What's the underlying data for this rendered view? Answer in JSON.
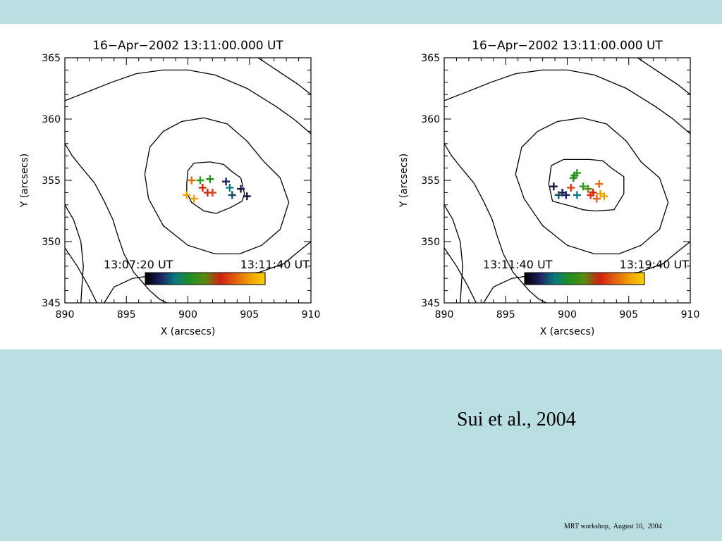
{
  "slide": {
    "citation": "Sui et al., 2004",
    "footer": "MRT workshop,  August 10,  2004",
    "background_color": "#b9dfe3"
  },
  "colorbar_colors": [
    "#000000",
    "#1e2060",
    "#0a7a80",
    "#1f8f20",
    "#5a8a10",
    "#d02010",
    "#e06010",
    "#f0a000",
    "#f8d000"
  ],
  "chart_data": [
    {
      "type": "scatter",
      "title": "16−Apr−2002 13:11:00.000 UT",
      "xlabel": "X (arcsecs)",
      "ylabel": "Y (arcsecs)",
      "xlim": [
        890,
        910
      ],
      "ylim": [
        345,
        365
      ],
      "xticks": [
        "890",
        "895",
        "900",
        "905",
        "910"
      ],
      "yticks": [
        "345",
        "350",
        "355",
        "360",
        "365"
      ],
      "colorbar": {
        "start": "13:07:20 UT",
        "end": "13:11:40 UT"
      },
      "marker": "plus",
      "points": [
        {
          "x": 904.8,
          "y": 353.7,
          "color": "#151540"
        },
        {
          "x": 904.3,
          "y": 354.3,
          "color": "#1a1a50"
        },
        {
          "x": 903.1,
          "y": 354.9,
          "color": "#1e2060"
        },
        {
          "x": 903.6,
          "y": 353.8,
          "color": "#16506a"
        },
        {
          "x": 903.4,
          "y": 354.4,
          "color": "#0a7a80"
        },
        {
          "x": 901.8,
          "y": 355.1,
          "color": "#1f8f20"
        },
        {
          "x": 901.0,
          "y": 355.0,
          "color": "#2a9a20"
        },
        {
          "x": 901.2,
          "y": 354.4,
          "color": "#d02010"
        },
        {
          "x": 901.6,
          "y": 354.0,
          "color": "#c82818"
        },
        {
          "x": 902.0,
          "y": 354.0,
          "color": "#d84010"
        },
        {
          "x": 900.3,
          "y": 355.0,
          "color": "#e07010"
        },
        {
          "x": 899.9,
          "y": 353.8,
          "color": "#f0a000"
        },
        {
          "x": 900.5,
          "y": 353.5,
          "color": "#f0a000"
        }
      ],
      "contours": [
        [
          [
            899.9,
            354.7
          ],
          [
            900.0,
            355.8
          ],
          [
            900.5,
            356.4
          ],
          [
            901.8,
            356.5
          ],
          [
            902.9,
            356.3
          ],
          [
            903.6,
            355.7
          ],
          [
            904.3,
            355.2
          ],
          [
            904.6,
            353.9
          ],
          [
            904.4,
            353.3
          ],
          [
            903.5,
            352.8
          ],
          [
            902.3,
            352.3
          ],
          [
            901.3,
            352.5
          ],
          [
            900.3,
            353.2
          ],
          [
            899.9,
            354.0
          ],
          [
            899.9,
            354.7
          ]
        ],
        [
          [
            896.5,
            355.5
          ],
          [
            896.9,
            357.7
          ],
          [
            898.0,
            359.0
          ],
          [
            899.5,
            359.8
          ],
          [
            901.3,
            360.1
          ],
          [
            903.2,
            359.6
          ],
          [
            904.8,
            358.2
          ],
          [
            906.2,
            356.5
          ],
          [
            907.5,
            355.2
          ],
          [
            908.2,
            353.2
          ],
          [
            907.5,
            351.0
          ],
          [
            906.0,
            349.7
          ],
          [
            904.2,
            349.0
          ],
          [
            902.2,
            349.0
          ],
          [
            900.0,
            349.7
          ],
          [
            898.0,
            351.3
          ],
          [
            896.8,
            353.5
          ],
          [
            896.5,
            355.5
          ]
        ],
        [
          [
            890.0,
            361.5
          ],
          [
            891.8,
            362.2
          ],
          [
            893.8,
            363.0
          ],
          [
            895.8,
            363.7
          ],
          [
            898.0,
            364.0
          ],
          [
            900.0,
            364.0
          ],
          [
            902.2,
            363.6
          ],
          [
            904.8,
            362.5
          ],
          [
            907.2,
            361.0
          ],
          [
            908.6,
            360.0
          ],
          [
            910.0,
            358.8
          ]
        ],
        [
          [
            893.2,
            345.0
          ],
          [
            894.0,
            346.3
          ],
          [
            895.5,
            347.0
          ],
          [
            897.5,
            347.3
          ],
          [
            899.7,
            347.3
          ],
          [
            901.8,
            347.3
          ],
          [
            903.8,
            347.3
          ],
          [
            905.8,
            347.5
          ],
          [
            907.8,
            348.2
          ],
          [
            909.0,
            349.2
          ],
          [
            910.0,
            350.0
          ]
        ],
        [
          [
            890.0,
            358.0
          ],
          [
            890.6,
            357.0
          ],
          [
            891.4,
            356.0
          ],
          [
            892.4,
            354.8
          ],
          [
            893.2,
            353.3
          ],
          [
            893.9,
            351.8
          ],
          [
            894.3,
            350.5
          ],
          [
            894.8,
            349.0
          ],
          [
            895.6,
            347.5
          ],
          [
            896.9,
            346.0
          ],
          [
            897.7,
            345.3
          ],
          [
            898.3,
            345.0
          ]
        ],
        [
          [
            890.0,
            353.0
          ],
          [
            890.7,
            351.8
          ],
          [
            891.3,
            350.0
          ],
          [
            891.5,
            348.0
          ],
          [
            891.4,
            346.5
          ],
          [
            891.3,
            345.0
          ]
        ],
        [
          [
            890.0,
            349.5
          ],
          [
            891.0,
            348.0
          ],
          [
            891.9,
            346.4
          ],
          [
            892.6,
            345.0
          ]
        ],
        [
          [
            905.7,
            365.0
          ],
          [
            907.5,
            363.8
          ],
          [
            909.0,
            362.8
          ],
          [
            910.0,
            362.0
          ]
        ]
      ]
    },
    {
      "type": "scatter",
      "title": "16−Apr−2002 13:11:00.000 UT",
      "xlabel": "X (arcsecs)",
      "ylabel": "Y (arcsecs)",
      "xlim": [
        890,
        910
      ],
      "ylim": [
        345,
        365
      ],
      "xticks": [
        "890",
        "895",
        "900",
        "905",
        "910"
      ],
      "yticks": [
        "345",
        "350",
        "355",
        "360",
        "365"
      ],
      "colorbar": {
        "start": "13:11:40 UT",
        "end": "13:19:40 UT"
      },
      "marker": "plus",
      "points": [
        {
          "x": 898.9,
          "y": 354.5,
          "color": "#151540"
        },
        {
          "x": 899.6,
          "y": 354.0,
          "color": "#1a1a50"
        },
        {
          "x": 899.9,
          "y": 353.8,
          "color": "#1e2060"
        },
        {
          "x": 899.3,
          "y": 353.8,
          "color": "#16506a"
        },
        {
          "x": 900.8,
          "y": 353.8,
          "color": "#0a7a80"
        },
        {
          "x": 900.6,
          "y": 355.4,
          "color": "#1f8f20"
        },
        {
          "x": 900.8,
          "y": 355.6,
          "color": "#2a9a20"
        },
        {
          "x": 900.5,
          "y": 355.2,
          "color": "#1f8f20"
        },
        {
          "x": 901.3,
          "y": 354.5,
          "color": "#2a9a20"
        },
        {
          "x": 901.7,
          "y": 354.3,
          "color": "#5a8a10"
        },
        {
          "x": 902.1,
          "y": 354.0,
          "color": "#d02010"
        },
        {
          "x": 900.3,
          "y": 354.4,
          "color": "#d84010"
        },
        {
          "x": 901.9,
          "y": 353.8,
          "color": "#e03018"
        },
        {
          "x": 902.4,
          "y": 353.5,
          "color": "#e06010"
        },
        {
          "x": 902.6,
          "y": 354.7,
          "color": "#e07010"
        },
        {
          "x": 902.7,
          "y": 353.9,
          "color": "#f0a000"
        },
        {
          "x": 903.0,
          "y": 353.7,
          "color": "#f0a000"
        }
      ],
      "contours": [
        [
          [
            898.5,
            354.7
          ],
          [
            898.7,
            356.2
          ],
          [
            899.7,
            356.7
          ],
          [
            901.8,
            356.7
          ],
          [
            902.9,
            356.6
          ],
          [
            903.6,
            356.0
          ],
          [
            904.6,
            355.3
          ],
          [
            904.6,
            353.9
          ],
          [
            903.8,
            352.6
          ],
          [
            902.3,
            352.5
          ],
          [
            901.3,
            352.6
          ],
          [
            900.3,
            352.9
          ],
          [
            898.8,
            353.3
          ],
          [
            898.5,
            354.7
          ]
        ],
        [
          [
            895.8,
            355.5
          ],
          [
            896.3,
            357.7
          ],
          [
            897.6,
            359.0
          ],
          [
            899.2,
            359.8
          ],
          [
            901.2,
            360.1
          ],
          [
            903.2,
            359.6
          ],
          [
            904.8,
            358.2
          ],
          [
            906.0,
            356.5
          ],
          [
            907.5,
            355.2
          ],
          [
            908.2,
            353.2
          ],
          [
            907.5,
            351.0
          ],
          [
            906.0,
            349.7
          ],
          [
            904.2,
            349.0
          ],
          [
            902.2,
            349.0
          ],
          [
            900.0,
            349.7
          ],
          [
            898.0,
            351.3
          ],
          [
            896.5,
            353.5
          ],
          [
            895.8,
            355.5
          ]
        ],
        [
          [
            890.0,
            361.5
          ],
          [
            891.8,
            362.2
          ],
          [
            893.8,
            363.0
          ],
          [
            895.8,
            363.7
          ],
          [
            898.0,
            364.0
          ],
          [
            900.0,
            364.0
          ],
          [
            902.2,
            363.6
          ],
          [
            904.8,
            362.5
          ],
          [
            907.2,
            361.0
          ],
          [
            908.6,
            360.0
          ],
          [
            910.0,
            358.8
          ]
        ],
        [
          [
            893.2,
            345.0
          ],
          [
            894.0,
            346.3
          ],
          [
            895.5,
            347.0
          ],
          [
            897.5,
            347.3
          ],
          [
            899.7,
            347.3
          ],
          [
            901.8,
            347.3
          ],
          [
            903.8,
            347.3
          ],
          [
            905.8,
            347.5
          ],
          [
            907.8,
            348.2
          ],
          [
            909.0,
            349.2
          ],
          [
            910.0,
            350.0
          ]
        ],
        [
          [
            890.0,
            358.0
          ],
          [
            890.6,
            357.0
          ],
          [
            891.4,
            356.0
          ],
          [
            892.4,
            354.8
          ],
          [
            893.2,
            353.3
          ],
          [
            893.9,
            351.8
          ],
          [
            894.3,
            350.5
          ],
          [
            894.8,
            349.0
          ],
          [
            895.6,
            347.5
          ],
          [
            896.9,
            346.0
          ],
          [
            897.7,
            345.3
          ],
          [
            898.3,
            345.0
          ]
        ],
        [
          [
            890.0,
            353.0
          ],
          [
            890.7,
            351.8
          ],
          [
            891.3,
            350.0
          ],
          [
            891.5,
            348.0
          ],
          [
            891.4,
            346.5
          ],
          [
            891.3,
            345.0
          ]
        ],
        [
          [
            890.0,
            349.5
          ],
          [
            891.0,
            348.0
          ],
          [
            891.9,
            346.4
          ],
          [
            892.6,
            345.0
          ]
        ],
        [
          [
            905.7,
            365.0
          ],
          [
            907.5,
            363.8
          ],
          [
            909.0,
            362.8
          ],
          [
            910.0,
            362.0
          ]
        ]
      ]
    }
  ]
}
